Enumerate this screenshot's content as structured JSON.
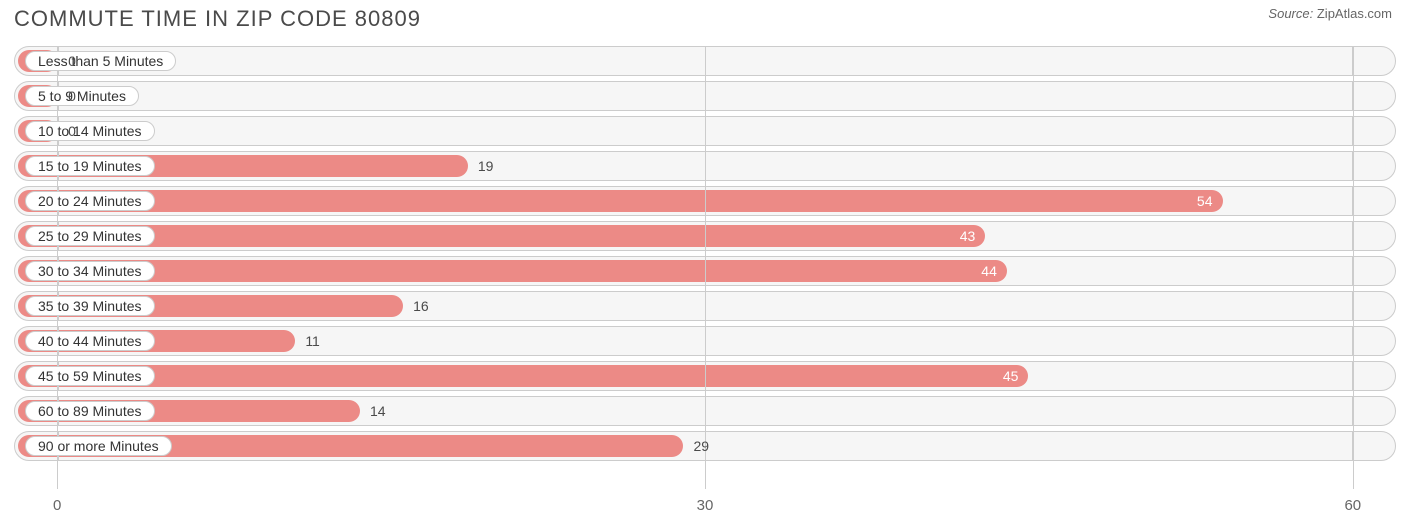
{
  "title": "COMMUTE TIME IN ZIP CODE 80809",
  "source_label": "Source:",
  "source_name": "ZipAtlas.com",
  "chart": {
    "type": "bar-horizontal",
    "bar_color": "#ec8a86",
    "track_bg": "#f6f6f6",
    "track_border": "#cccccc",
    "grid_color": "#cccccc",
    "value_color_inside": "#ffffff",
    "value_color_outside": "#4a4a4a",
    "x_min_value": -2,
    "x_max_value": 62,
    "x_ticks": [
      0,
      30,
      60
    ],
    "value_inside_threshold": 30,
    "rows": [
      {
        "label": "Less than 5 Minutes",
        "value": 0
      },
      {
        "label": "5 to 9 Minutes",
        "value": 0
      },
      {
        "label": "10 to 14 Minutes",
        "value": 0
      },
      {
        "label": "15 to 19 Minutes",
        "value": 19
      },
      {
        "label": "20 to 24 Minutes",
        "value": 54
      },
      {
        "label": "25 to 29 Minutes",
        "value": 43
      },
      {
        "label": "30 to 34 Minutes",
        "value": 44
      },
      {
        "label": "35 to 39 Minutes",
        "value": 16
      },
      {
        "label": "40 to 44 Minutes",
        "value": 11
      },
      {
        "label": "45 to 59 Minutes",
        "value": 45
      },
      {
        "label": "60 to 89 Minutes",
        "value": 14
      },
      {
        "label": "90 or more Minutes",
        "value": 29
      }
    ]
  }
}
